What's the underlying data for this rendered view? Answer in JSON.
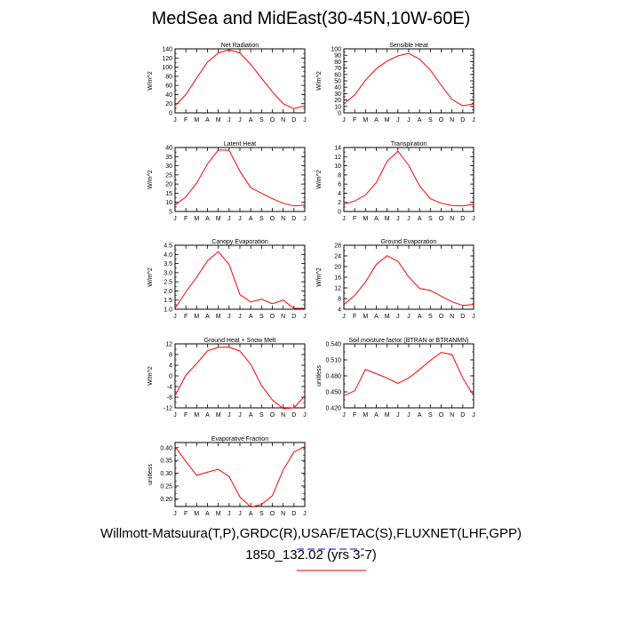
{
  "title": "MedSea and MidEast(30-45N,10W-60E)",
  "footer_line1": "Willmott-Matsuura(T,P),GRDC(R),USAF/ETAC(S),FLUXNET(LHF,GPP)",
  "footer_line2": "1850_132.02 (yrs 3-7)",
  "colors": {
    "line": "#ff0000",
    "axis": "#000000",
    "footer_underline": "#ff0000",
    "footer_dash": "#0000ff"
  },
  "chart_data": [
    {
      "type": "line",
      "title": "Net Radiation",
      "ylabel": "W/m^2",
      "categories": [
        "J",
        "F",
        "M",
        "A",
        "M",
        "J",
        "J",
        "A",
        "S",
        "O",
        "N",
        "D",
        "J"
      ],
      "values": [
        16,
        40,
        76,
        111,
        131,
        138,
        131,
        106,
        76,
        46,
        20,
        9,
        16
      ],
      "ylim": [
        0,
        140
      ],
      "yticks": [
        "0",
        "20",
        "40",
        "60",
        "80",
        "100",
        "120",
        "140"
      ],
      "yminor": 10
    },
    {
      "type": "line",
      "title": "Sensible Heat",
      "ylabel": "W/m^2",
      "categories": [
        "J",
        "F",
        "M",
        "A",
        "M",
        "J",
        "J",
        "A",
        "S",
        "O",
        "N",
        "D",
        "J"
      ],
      "values": [
        14,
        28,
        51,
        69,
        81,
        89,
        93,
        84,
        67,
        43,
        21,
        11,
        14
      ],
      "ylim": [
        0,
        100
      ],
      "yticks": [
        "0",
        "10",
        "20",
        "30",
        "40",
        "50",
        "60",
        "70",
        "80",
        "90",
        "100"
      ],
      "yminor": 5
    },
    {
      "type": "line",
      "title": "Latent Heat",
      "ylabel": "W/m^2",
      "categories": [
        "J",
        "F",
        "M",
        "A",
        "M",
        "J",
        "J",
        "A",
        "S",
        "O",
        "N",
        "D",
        "J"
      ],
      "values": [
        8.5,
        13,
        20.5,
        31,
        38.7,
        38.5,
        27,
        18,
        15,
        12,
        9.5,
        8,
        8.5
      ],
      "ylim": [
        5,
        40
      ],
      "yticks": [
        "5",
        "10",
        "15",
        "20",
        "25",
        "30",
        "35",
        "40"
      ],
      "yminor": 2.5
    },
    {
      "type": "line",
      "title": "Transpiration",
      "ylabel": "W/m^2",
      "categories": [
        "J",
        "F",
        "M",
        "A",
        "M",
        "J",
        "J",
        "A",
        "S",
        "O",
        "N",
        "D",
        "J"
      ],
      "values": [
        1.6,
        2.3,
        3.6,
        6.3,
        11.0,
        13.2,
        10.1,
        5.6,
        2.8,
        1.8,
        1.3,
        1.2,
        1.6
      ],
      "ylim": [
        0,
        14
      ],
      "yticks": [
        "0",
        "2",
        "4",
        "6",
        "8",
        "10",
        "12",
        "14"
      ],
      "yminor": 1
    },
    {
      "type": "line",
      "title": "Canopy Evaporation",
      "ylabel": "W/m^2",
      "categories": [
        "J",
        "F",
        "M",
        "A",
        "M",
        "J",
        "J",
        "A",
        "S",
        "O",
        "N",
        "D",
        "J"
      ],
      "values": [
        1.05,
        1.95,
        2.75,
        3.65,
        4.15,
        3.45,
        1.8,
        1.4,
        1.55,
        1.3,
        1.5,
        1.05,
        1.05
      ],
      "ylim": [
        1,
        4.5
      ],
      "yticks": [
        "1.0",
        "1.5",
        "2.0",
        "2.5",
        "3.0",
        "3.5",
        "4.0",
        "4.5"
      ],
      "yminor": 0.25
    },
    {
      "type": "line",
      "title": "Ground Evaporation",
      "ylabel": "W/m^2",
      "categories": [
        "J",
        "F",
        "M",
        "A",
        "M",
        "J",
        "J",
        "A",
        "S",
        "O",
        "N",
        "D",
        "J"
      ],
      "values": [
        5.8,
        9.2,
        14.2,
        20.8,
        24.1,
        22.0,
        16.1,
        11.8,
        11.1,
        8.9,
        6.8,
        5.4,
        5.8
      ],
      "ylim": [
        4,
        28
      ],
      "yticks": [
        "4",
        "8",
        "12",
        "16",
        "20",
        "24",
        "28"
      ],
      "yminor": 2
    },
    {
      "type": "line",
      "title": "Ground Heat + Snow Melt",
      "ylabel": "W/m^2",
      "categories": [
        "J",
        "F",
        "M",
        "A",
        "M",
        "J",
        "J",
        "A",
        "S",
        "O",
        "N",
        "D",
        "J"
      ],
      "values": [
        -7.5,
        0.3,
        4.6,
        9.4,
        10.7,
        10.8,
        9.3,
        4.3,
        -3.6,
        -9.0,
        -12.3,
        -12.0,
        -7.5
      ],
      "ylim": [
        -12,
        12
      ],
      "yticks": [
        "-12",
        "-8",
        "-4",
        "0",
        "4",
        "8",
        "12"
      ],
      "yminor": 2
    },
    {
      "type": "line",
      "title": "Soil moisture factor (BTRAN or BTRANMN)",
      "ylabel": "unitless",
      "categories": [
        "J",
        "F",
        "M",
        "A",
        "M",
        "J",
        "J",
        "A",
        "S",
        "O",
        "N",
        "D",
        "J"
      ],
      "values": [
        0.443,
        0.452,
        0.492,
        0.484,
        0.476,
        0.466,
        0.476,
        0.492,
        0.509,
        0.524,
        0.52,
        0.476,
        0.443
      ],
      "ylim": [
        0.42,
        0.54
      ],
      "yticks": [
        "0.420",
        "0.450",
        "0.480",
        "0.510",
        "0.540"
      ],
      "yminor": 0.015
    },
    {
      "type": "line",
      "title": "Evaporative Fraction",
      "ylabel": "unitless",
      "categories": [
        "J",
        "F",
        "M",
        "A",
        "M",
        "J",
        "J",
        "A",
        "S",
        "O",
        "N",
        "D",
        "J"
      ],
      "values": [
        0.404,
        0.346,
        0.292,
        0.304,
        0.315,
        0.287,
        0.207,
        0.168,
        0.178,
        0.212,
        0.313,
        0.383,
        0.404
      ],
      "ylim": [
        0.17,
        0.42
      ],
      "yticks": [
        "0.20",
        "0.25",
        "0.30",
        "0.35",
        "0.40"
      ],
      "yminor": 0.025
    }
  ]
}
